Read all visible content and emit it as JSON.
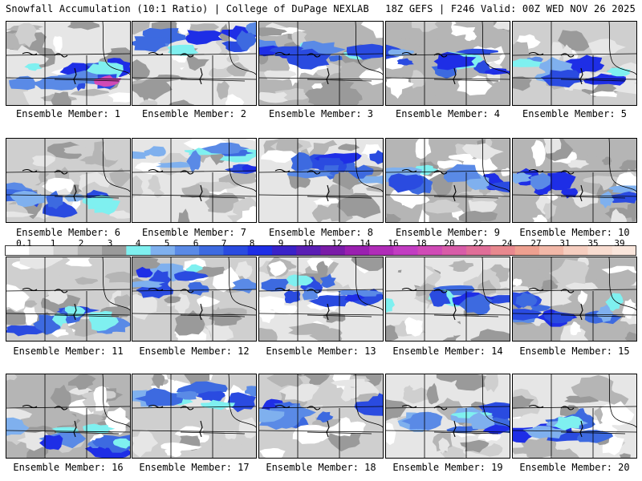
{
  "header": {
    "left": "Snowfall Accumulation (10:1 Ratio) | College of DuPage NEXLAB",
    "right": "18Z GEFS | F246 Valid: 00Z WED NOV 26 2025"
  },
  "members": [
    {
      "label": "Ensemble Member: 1"
    },
    {
      "label": "Ensemble Member: 2"
    },
    {
      "label": "Ensemble Member: 3"
    },
    {
      "label": "Ensemble Member: 4"
    },
    {
      "label": "Ensemble Member: 5"
    },
    {
      "label": "Ensemble Member: 6"
    },
    {
      "label": "Ensemble Member: 7"
    },
    {
      "label": "Ensemble Member: 8"
    },
    {
      "label": "Ensemble Member: 9"
    },
    {
      "label": "Ensemble Member: 10"
    },
    {
      "label": "Ensemble Member: 11"
    },
    {
      "label": "Ensemble Member: 12"
    },
    {
      "label": "Ensemble Member: 13"
    },
    {
      "label": "Ensemble Member: 14"
    },
    {
      "label": "Ensemble Member: 15"
    },
    {
      "label": "Ensemble Member: 16"
    },
    {
      "label": "Ensemble Member: 17"
    },
    {
      "label": "Ensemble Member: 18"
    },
    {
      "label": "Ensemble Member: 19"
    },
    {
      "label": "Ensemble Member: 20"
    }
  ],
  "colorbar": {
    "labels": [
      "0.1",
      "1",
      "2",
      "3",
      "4",
      "5",
      "6",
      "7",
      "8",
      "9",
      "10",
      "12",
      "14",
      "16",
      "18",
      "20",
      "22",
      "24",
      "27",
      "31",
      "35",
      "39"
    ],
    "colors": [
      "#ffffff",
      "#e6e6e6",
      "#cfcfcf",
      "#b5b5b5",
      "#9a9a9a",
      "#7ff0f0",
      "#7fb0ee",
      "#5a8ae6",
      "#3d6ae0",
      "#2a4be0",
      "#1e2ee6",
      "#3a22c8",
      "#5a1eb4",
      "#7a1ca8",
      "#9a20b0",
      "#b02cb8",
      "#c23cc2",
      "#d04ab6",
      "#d85ca8",
      "#e06e98",
      "#e8888e",
      "#eea090",
      "#f2b8a8",
      "#f6cec0",
      "#f8dcd0",
      "#fae6dc"
    ]
  }
}
